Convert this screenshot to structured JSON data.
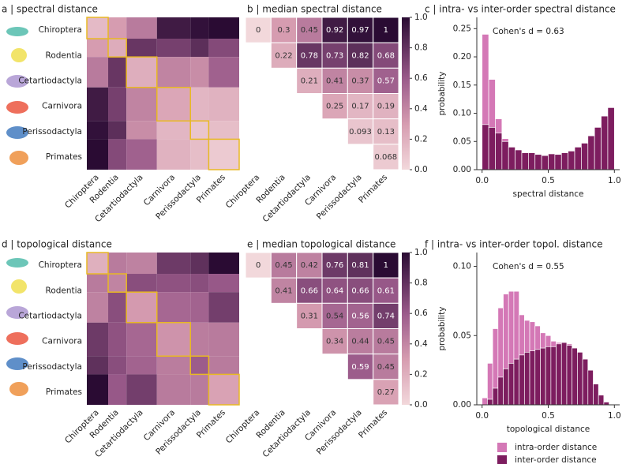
{
  "chart_data": [
    {
      "type": "heatmap",
      "title": "a | spectral distance",
      "categories": [
        "Chiroptera",
        "Rodentia",
        "Cetartiodactyla",
        "Carnivora",
        "Perissodactyla",
        "Primates"
      ],
      "row_labels": [
        "Chiroptera",
        "Rodentia",
        "Cetartiodactyla",
        "Carnivora",
        "Perissodactyla",
        "Primates"
      ],
      "values": [
        [
          0.15,
          0.3,
          0.45,
          0.92,
          0.97,
          1
        ],
        [
          0.3,
          0.22,
          0.78,
          0.73,
          0.82,
          0.68
        ],
        [
          0.45,
          0.78,
          0.21,
          0.41,
          0.37,
          0.57
        ],
        [
          0.92,
          0.73,
          0.41,
          0.25,
          0.17,
          0.19
        ],
        [
          0.97,
          0.82,
          0.37,
          0.17,
          0.093,
          0.13
        ],
        [
          1,
          0.68,
          0.57,
          0.19,
          0.13,
          0.068
        ]
      ],
      "clim": [
        0,
        1
      ],
      "highlight_color": "#e8b923"
    },
    {
      "type": "heatmap",
      "title": "b | median spectral distance",
      "categories": [
        "Chiroptera",
        "Rodentia",
        "Cetartiodactyla",
        "Carnivora",
        "Perissodactyla",
        "Primates"
      ],
      "values": [
        [
          0,
          0.3,
          0.45,
          0.92,
          0.97,
          1
        ],
        [
          null,
          0.22,
          0.78,
          0.73,
          0.82,
          0.68
        ],
        [
          null,
          null,
          0.21,
          0.41,
          0.37,
          0.57
        ],
        [
          null,
          null,
          null,
          0.25,
          0.17,
          0.19
        ],
        [
          null,
          null,
          null,
          null,
          0.093,
          0.13
        ],
        [
          null,
          null,
          null,
          null,
          null,
          0.068
        ]
      ],
      "show_values": true,
      "clim": [
        0,
        1
      ],
      "colorbar_ticks": [
        {
          "value": 0,
          "label": "0.0"
        },
        {
          "value": 0.2,
          "label": "0.2"
        },
        {
          "value": 0.4,
          "label": "0.4"
        },
        {
          "value": 0.6,
          "label": "0.6"
        },
        {
          "value": 0.8,
          "label": "0.8"
        },
        {
          "value": 1,
          "label": "1.0"
        }
      ]
    },
    {
      "type": "histogram",
      "title": "c | intra- vs inter-order spectral distance",
      "annotation": "Cohen's d = 0.63",
      "xlabel": "spectral distance",
      "ylabel": "probability",
      "bins": [
        0,
        0.05,
        0.1,
        0.15,
        0.2,
        0.25,
        0.3,
        0.35,
        0.4,
        0.45,
        0.5,
        0.55,
        0.6,
        0.65,
        0.7,
        0.75,
        0.8,
        0.85,
        0.9,
        0.95,
        1
      ],
      "series": [
        {
          "color": "#d478b6",
          "values": [
            0.24,
            0.16,
            0.09,
            0.055,
            0.04,
            0.035,
            0.03,
            0.03,
            0.025,
            0.025,
            0.02,
            0.015,
            0.01,
            0.01,
            0.005,
            0.005,
            0.003,
            0.003,
            0.002,
            0.002
          ]
        },
        {
          "color": "#7d1d5f",
          "values": [
            0.08,
            0.075,
            0.065,
            0.05,
            0.04,
            0.035,
            0.03,
            0.03,
            0.027,
            0.025,
            0.028,
            0.027,
            0.03,
            0.033,
            0.04,
            0.047,
            0.06,
            0.075,
            0.095,
            0.11
          ]
        }
      ],
      "xlim": [
        -0.04,
        1.04
      ],
      "ylim": [
        0,
        0.27
      ],
      "xticks": [
        {
          "value": 0,
          "label": "0.0"
        },
        {
          "value": 0.5,
          "label": "0.5"
        },
        {
          "value": 1,
          "label": "1.0"
        }
      ],
      "yticks": [
        {
          "value": 0,
          "label": "0.00"
        },
        {
          "value": 0.05,
          "label": "0.05"
        },
        {
          "value": 0.1,
          "label": "0.10"
        },
        {
          "value": 0.15,
          "label": "0.15"
        },
        {
          "value": 0.2,
          "label": "0.20"
        },
        {
          "value": 0.25,
          "label": "0.25"
        }
      ]
    },
    {
      "type": "heatmap",
      "title": "d | topological distance",
      "categories": [
        "Chiroptera",
        "Rodentia",
        "Cetartiodactyla",
        "Carnivora",
        "Perissodactyla",
        "Primates"
      ],
      "row_labels": [
        "Chiroptera",
        "Rodentia",
        "Cetartiodactyla",
        "Carnivora",
        "Perissodactyla",
        "Primates"
      ],
      "values": [
        [
          0.2,
          0.45,
          0.42,
          0.76,
          0.81,
          1
        ],
        [
          0.45,
          0.41,
          0.66,
          0.64,
          0.66,
          0.61
        ],
        [
          0.42,
          0.66,
          0.31,
          0.54,
          0.56,
          0.74
        ],
        [
          0.76,
          0.64,
          0.54,
          0.34,
          0.44,
          0.45
        ],
        [
          0.81,
          0.66,
          0.56,
          0.44,
          0.59,
          0.45
        ],
        [
          1,
          0.61,
          0.74,
          0.45,
          0.45,
          0.27
        ]
      ],
      "clim": [
        0,
        1
      ],
      "highlight_color": "#e8b923"
    },
    {
      "type": "heatmap",
      "title": "e | median topological distance",
      "categories": [
        "Chiroptera",
        "Rodentia",
        "Cetartiodactyla",
        "Carnivora",
        "Perissodactyla",
        "Primates"
      ],
      "values": [
        [
          0,
          0.45,
          0.42,
          0.76,
          0.81,
          1
        ],
        [
          null,
          0.41,
          0.66,
          0.64,
          0.66,
          0.61
        ],
        [
          null,
          null,
          0.31,
          0.54,
          0.56,
          0.74
        ],
        [
          null,
          null,
          null,
          0.34,
          0.44,
          0.45
        ],
        [
          null,
          null,
          null,
          null,
          0.59,
          0.45
        ],
        [
          null,
          null,
          null,
          null,
          null,
          0.27
        ]
      ],
      "show_values": true,
      "clim": [
        0,
        1
      ],
      "colorbar_ticks": [
        {
          "value": 0,
          "label": "0.0"
        },
        {
          "value": 0.2,
          "label": "0.2"
        },
        {
          "value": 0.4,
          "label": "0.4"
        },
        {
          "value": 0.6,
          "label": "0.6"
        },
        {
          "value": 0.8,
          "label": "0.8"
        },
        {
          "value": 1,
          "label": "1.0"
        }
      ]
    },
    {
      "type": "histogram",
      "title": "f | intra- vs inter-order topol. distance",
      "annotation": "Cohen's d = 0.55",
      "xlabel": "topological distance",
      "ylabel": "probability",
      "bins": [
        0,
        0.04,
        0.08,
        0.12,
        0.16,
        0.2,
        0.24,
        0.28,
        0.32,
        0.36,
        0.4,
        0.44,
        0.48,
        0.52,
        0.56,
        0.6,
        0.64,
        0.68,
        0.72,
        0.76,
        0.8,
        0.84,
        0.88,
        0.92,
        0.96,
        1
      ],
      "series": [
        {
          "name": "intra-order distance",
          "color": "#d478b6",
          "values": [
            0.005,
            0.03,
            0.055,
            0.07,
            0.08,
            0.082,
            0.082,
            0.065,
            0.061,
            0.06,
            0.057,
            0.052,
            0.05,
            0.046,
            0.045,
            0.045,
            0.044,
            0.04,
            0.033,
            0.025,
            0.016,
            0.008,
            0.003,
            0,
            0
          ]
        },
        {
          "name": "inter-order distance",
          "color": "#7d1d5f",
          "values": [
            0,
            0.004,
            0.012,
            0.02,
            0.026,
            0.03,
            0.033,
            0.036,
            0.038,
            0.039,
            0.04,
            0.041,
            0.042,
            0.042,
            0.044,
            0.045,
            0.043,
            0.041,
            0.038,
            0.033,
            0.025,
            0.015,
            0.007,
            0.002,
            0
          ]
        }
      ],
      "xlim": [
        -0.04,
        1.04
      ],
      "ylim": [
        0,
        0.11
      ],
      "xticks": [
        {
          "value": 0,
          "label": "0.0"
        },
        {
          "value": 0.5,
          "label": "0.5"
        },
        {
          "value": 1,
          "label": "1.0"
        }
      ],
      "yticks": [
        {
          "value": 0,
          "label": "0.00"
        },
        {
          "value": 0.05,
          "label": "0.05"
        },
        {
          "value": 0.1,
          "label": "0.10"
        }
      ]
    }
  ]
}
